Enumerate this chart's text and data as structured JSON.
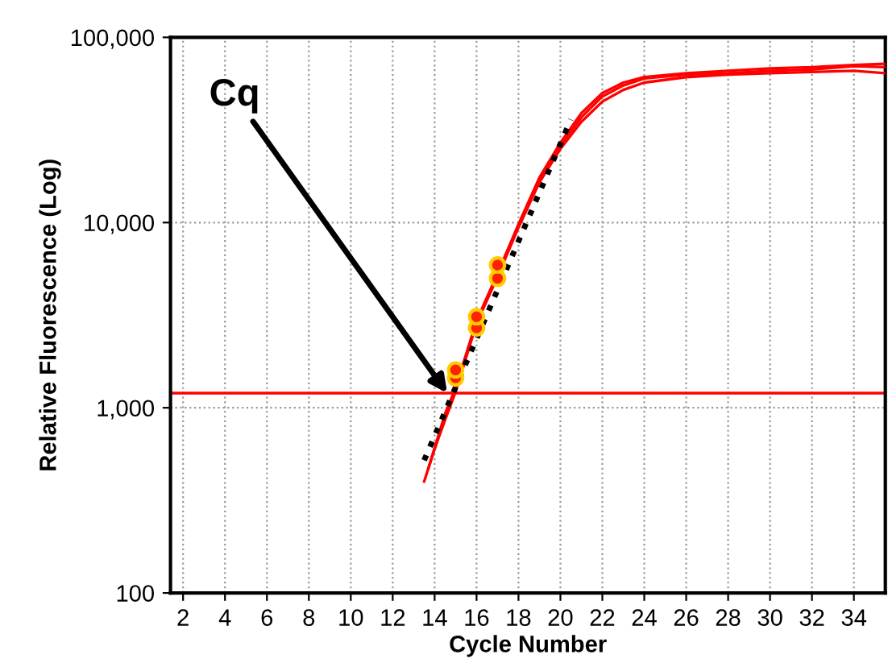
{
  "chart_data": {
    "type": "line",
    "xlabel": "Cycle Number",
    "ylabel": "Relative Fluorescence (Log)",
    "log": "y",
    "xlim": [
      1.4,
      35.5
    ],
    "xticks": [
      2,
      4,
      6,
      8,
      10,
      12,
      14,
      16,
      18,
      20,
      22,
      24,
      26,
      28,
      30,
      32,
      34
    ],
    "ylim": [
      100,
      100000
    ],
    "yticks": [
      {
        "value": 100,
        "label": "100"
      },
      {
        "value": 1000,
        "label": "1,000"
      },
      {
        "value": 10000,
        "label": "10,000"
      },
      {
        "value": 100000,
        "label": "100,000"
      }
    ],
    "grid": true,
    "legend": false,
    "series": [
      {
        "color": "#ff0000",
        "line_style": "solid",
        "x": [
          13.5,
          14.5,
          15,
          16,
          17,
          18,
          19,
          20,
          21,
          22,
          23,
          24,
          26,
          28,
          30,
          32,
          34,
          35.5
        ],
        "values": [
          400,
          900,
          1250,
          2900,
          5200,
          9600,
          17000,
          26000,
          37000,
          48000,
          55000,
          60000,
          63000,
          64000,
          66000,
          67000,
          70000,
          69000
        ]
      },
      {
        "color": "#ff0000",
        "line_style": "solid",
        "x": [
          13.7,
          14.5,
          15,
          16,
          17,
          18,
          19,
          20,
          21,
          22,
          23,
          24,
          26,
          28,
          30,
          32,
          34,
          35.5
        ],
        "values": [
          470,
          930,
          1280,
          2950,
          5300,
          9800,
          17500,
          27000,
          39000,
          50000,
          57000,
          61000,
          64000,
          66000,
          68000,
          69000,
          71000,
          72000
        ]
      },
      {
        "color": "#ff0000",
        "line_style": "solid",
        "x": [
          14.0,
          14.5,
          15,
          16,
          17,
          18,
          19,
          20,
          21,
          22,
          23,
          24,
          26,
          28,
          30,
          32,
          34,
          35.5
        ],
        "values": [
          600,
          860,
          1220,
          2850,
          5100,
          9400,
          16500,
          25000,
          35000,
          45000,
          52000,
          57000,
          61000,
          63000,
          64000,
          65000,
          66000,
          64000
        ]
      },
      {
        "color": "#000000",
        "line_style": "dotted",
        "x": [
          13.5,
          20.5
        ],
        "values": [
          520,
          36000
        ]
      },
      {
        "type": "scatter",
        "color": "#ff2200",
        "marker": "circle",
        "x": [
          15,
          15,
          16,
          16,
          17,
          17
        ],
        "values": [
          1450,
          1600,
          2700,
          3100,
          5000,
          5900
        ]
      }
    ],
    "ref_lines": [
      {
        "axis": "y",
        "value": 1200,
        "color": "#ff0000"
      }
    ],
    "annotations": [
      {
        "text": "Cq",
        "x": 14.6,
        "y": 1200
      }
    ]
  }
}
